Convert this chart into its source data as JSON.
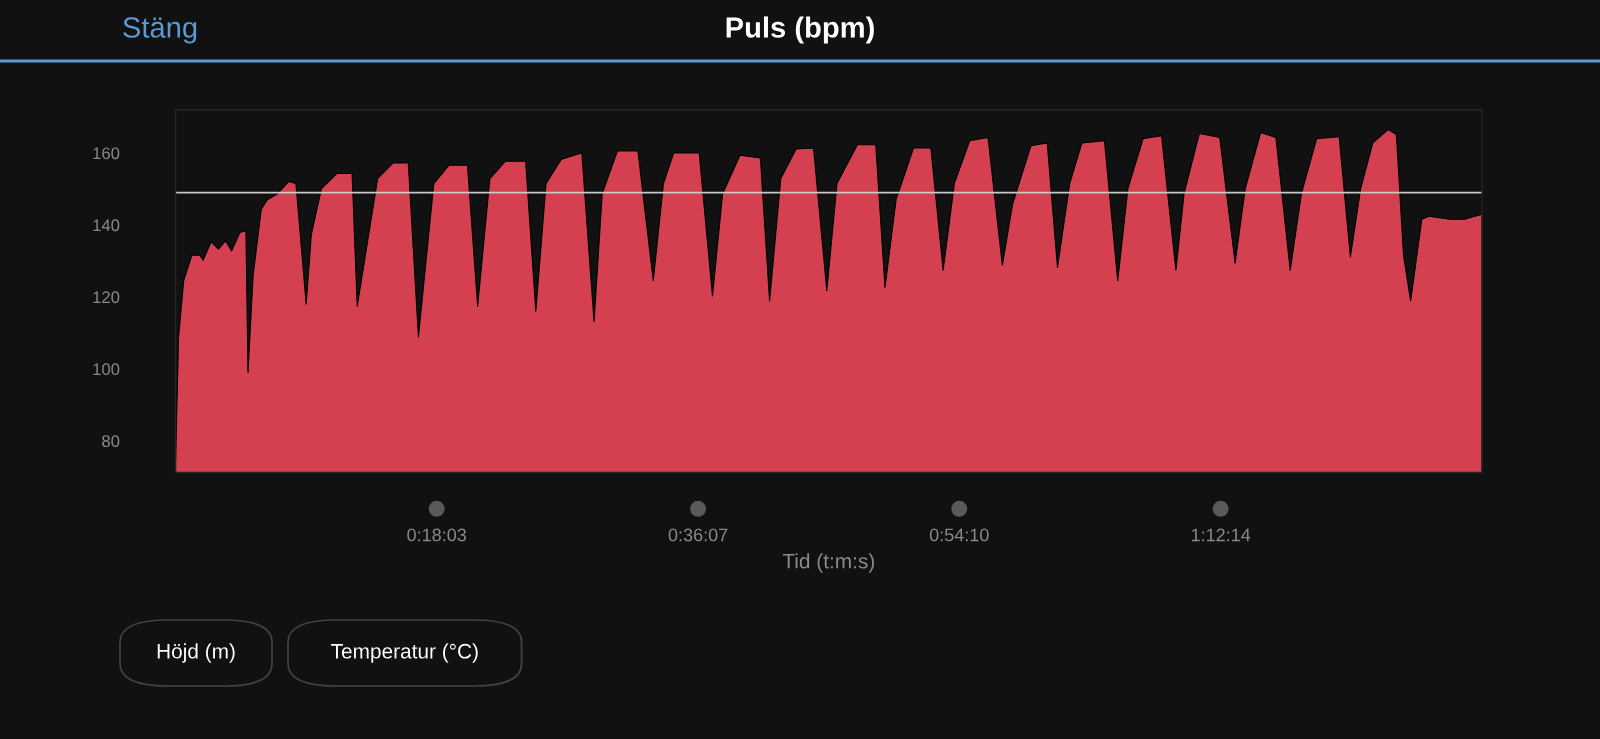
{
  "chart_data": {
    "type": "area",
    "title": "Puls (bpm)",
    "xlabel": "Tid (t:m:s)",
    "annotations": [
      "Stäng",
      "Höjd (m)",
      "Temperatur (°C)"
    ],
    "x": [
      0,
      0.0035,
      0.0094,
      0.0188,
      0.0282,
      0.0317,
      0.0411,
      0.0494,
      0.0576,
      0.0647,
      0.0741,
      0.0811,
      0.0835,
      0.0894,
      0.0988,
      0.1058,
      0.1176,
      0.1305,
      0.1387,
      0.1505,
      0.1564,
      0.1681,
      0.1858,
      0.2034,
      0.2093,
      0.2328,
      0.2504,
      0.2681,
      0.2798,
      0.2975,
      0.3151,
      0.3363,
      0.348,
      0.3621,
      0.3798,
      0.4033,
      0.415,
      0.4268,
      0.4445,
      0.468,
      0.4821,
      0.4915,
      0.5091,
      0.5326,
      0.5503,
      0.562,
      0.5738,
      0.6032,
      0.6185,
      0.6302,
      0.6502,
      0.6737,
      0.6843,
      0.6972,
      0.7149,
      0.7349,
      0.7502,
      0.7619,
      0.7854,
      0.8066,
      0.8172,
      0.8301,
      0.8501,
      0.8701,
      0.8842,
      0.8971,
      0.9148,
      0.9359,
      0.9524,
      0.9642,
      0.9853,
      1.0041,
      1.0159,
      1.03,
      1.0441,
      1.07,
      1.0853,
      1.097,
      1.1146,
      1.1358,
      1.1523,
      1.1617,
      1.1793,
      1.2028,
      1.2205,
      1.2322,
      1.2499,
      1.2675,
      1.284,
      1.2969,
      1.3145,
      1.3404,
      1.3533,
      1.3651,
      1.3792,
      1.3968,
      1.4063,
      1.4145,
      1.4227,
      1.4356,
      1.4439,
      1.4674,
      1.485,
      1.505
    ],
    "series": [
      {
        "color": "#d4404f",
        "values": [
          73.5,
          108.9,
          124.5,
          131.6,
          131.6,
          130.2,
          135.3,
          133.3,
          135.6,
          132.8,
          137.9,
          138.4,
          99.0,
          126.0,
          144.4,
          147.0,
          148.7,
          152.1,
          151.5,
          118.0,
          137.3,
          150.1,
          154.3,
          154.3,
          117.4,
          152.9,
          157.2,
          157.2,
          108.9,
          151.5,
          156.6,
          156.6,
          117.4,
          152.9,
          157.7,
          157.7,
          116.0,
          151.5,
          158.3,
          160,
          113.2,
          148.7,
          160.6,
          160.6,
          124.5,
          151.5,
          160,
          160,
          120.3,
          148.7,
          159.4,
          158.6,
          118.9,
          152.9,
          161.1,
          161.4,
          121.7,
          151.5,
          162.3,
          162.3,
          122.6,
          147.2,
          161.4,
          161.4,
          127.4,
          151.5,
          163.4,
          164.3,
          128.8,
          145.8,
          162.0,
          162.8,
          128.2,
          151.5,
          162.8,
          163.4,
          124.5,
          150.1,
          164.0,
          164.8,
          127.4,
          148.7,
          165.4,
          164.3,
          129.4,
          150.1,
          165.7,
          164.3,
          127.4,
          148.7,
          164.0,
          164.5,
          131.1,
          150.1,
          162.8,
          166.5,
          165.1,
          131.6,
          118.9,
          141.6,
          142.4,
          141.6,
          141.6,
          143.0
        ]
      }
    ],
    "xlim": [
      0,
      1.505
    ],
    "ylim": [
      71.2,
      172
    ],
    "xticks": [
      {
        "value": 0.30083,
        "label": "0:18:03"
      },
      {
        "value": 0.60194,
        "label": "0:36:07"
      },
      {
        "value": 0.90278,
        "label": "0:54:10"
      },
      {
        "value": 1.20389,
        "label": "1:12:14"
      }
    ],
    "yticks": [
      80,
      100,
      120,
      140,
      160
    ],
    "ref_lines": [
      {
        "axis": "y",
        "value": 149,
        "color": "#c8c8c8"
      }
    ],
    "grid": false,
    "legend": false
  }
}
